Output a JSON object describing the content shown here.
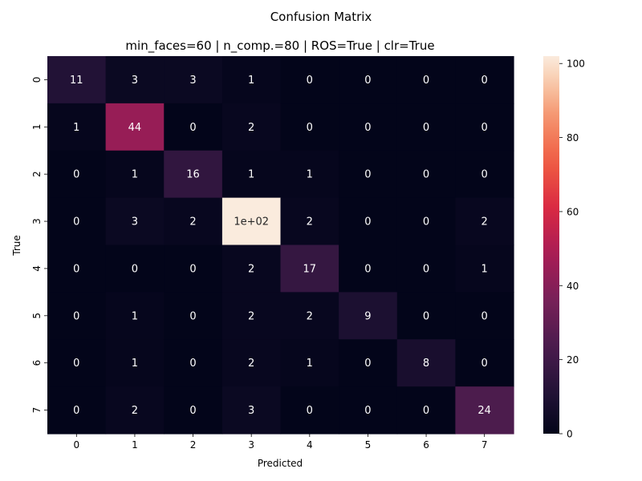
{
  "chart_data": {
    "type": "heatmap",
    "suptitle": "Confusion Matrix",
    "title": "min_faces=60 | n_comp.=80 | ROS=True | clr=True",
    "xlabel": "Predicted",
    "ylabel": "True",
    "x_categories": [
      "0",
      "1",
      "2",
      "3",
      "4",
      "5",
      "6",
      "7"
    ],
    "y_categories": [
      "0",
      "1",
      "2",
      "3",
      "4",
      "5",
      "6",
      "7"
    ],
    "values": [
      [
        11,
        3,
        3,
        1,
        0,
        0,
        0,
        0
      ],
      [
        1,
        44,
        0,
        2,
        0,
        0,
        0,
        0
      ],
      [
        0,
        1,
        16,
        1,
        1,
        0,
        0,
        0
      ],
      [
        0,
        3,
        2,
        102,
        2,
        0,
        0,
        2
      ],
      [
        0,
        0,
        0,
        2,
        17,
        0,
        0,
        1
      ],
      [
        0,
        1,
        0,
        2,
        2,
        9,
        0,
        0
      ],
      [
        0,
        1,
        0,
        2,
        1,
        0,
        8,
        0
      ],
      [
        0,
        2,
        0,
        3,
        0,
        0,
        0,
        24
      ]
    ],
    "cell_labels": [
      [
        "11",
        "3",
        "3",
        "1",
        "0",
        "0",
        "0",
        "0"
      ],
      [
        "1",
        "44",
        "0",
        "2",
        "0",
        "0",
        "0",
        "0"
      ],
      [
        "0",
        "1",
        "16",
        "1",
        "1",
        "0",
        "0",
        "0"
      ],
      [
        "0",
        "3",
        "2",
        "1e+02",
        "2",
        "0",
        "0",
        "2"
      ],
      [
        "0",
        "0",
        "0",
        "2",
        "17",
        "0",
        "0",
        "1"
      ],
      [
        "0",
        "1",
        "0",
        "2",
        "2",
        "9",
        "0",
        "0"
      ],
      [
        "0",
        "1",
        "0",
        "2",
        "1",
        "0",
        "8",
        "0"
      ],
      [
        "0",
        "2",
        "0",
        "3",
        "0",
        "0",
        "0",
        "24"
      ]
    ],
    "colormap": "rocket",
    "vmin": 0,
    "vmax": 102,
    "colorbar_ticks": [
      "0",
      "20",
      "40",
      "60",
      "80",
      "100"
    ],
    "colorbar_tick_values": [
      0,
      20,
      40,
      60,
      80,
      100
    ],
    "grid": false,
    "legend": "colorbar-right"
  }
}
